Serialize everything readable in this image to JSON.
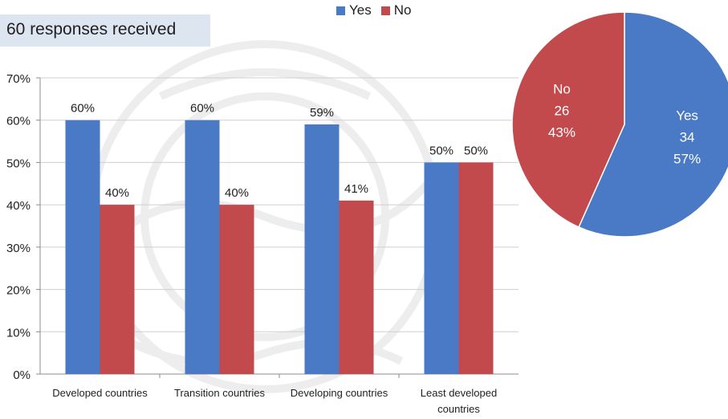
{
  "header": {
    "subtitle": "60 responses received"
  },
  "legend": [
    {
      "label": "Yes",
      "color": "#4a7ac5"
    },
    {
      "label": "No",
      "color": "#c24a4d"
    }
  ],
  "chart_data": [
    {
      "type": "bar",
      "title": "",
      "xlabel": "",
      "ylabel": "",
      "categories": [
        "Developed countries",
        "Transition countries",
        "Developing countries",
        "Least developed countries"
      ],
      "category_lines": [
        [
          "Developed countries"
        ],
        [
          "Transition countries"
        ],
        [
          "Developing countries"
        ],
        [
          "Least developed",
          "countries"
        ]
      ],
      "series": [
        {
          "name": "Yes",
          "color": "#4a7ac5",
          "values": [
            60,
            60,
            59,
            50
          ],
          "labels": [
            "60%",
            "60%",
            "59%",
            "50%"
          ]
        },
        {
          "name": "No",
          "color": "#c24a4d",
          "values": [
            40,
            40,
            41,
            50
          ],
          "labels": [
            "40%",
            "40%",
            "41%",
            "50%"
          ]
        }
      ],
      "ylim": [
        0,
        70
      ],
      "yticks": [
        0,
        10,
        20,
        30,
        40,
        50,
        60,
        70
      ],
      "ytick_labels": [
        "0%",
        "10%",
        "20%",
        "30%",
        "40%",
        "50%",
        "60%",
        "70%"
      ],
      "grid": true,
      "legend_placement": "top"
    },
    {
      "type": "pie",
      "slices": [
        {
          "name": "Yes",
          "value": 34,
          "percent": "57%",
          "color": "#4a7ac5",
          "label_lines": [
            "Yes",
            "34",
            "57%"
          ]
        },
        {
          "name": "No",
          "value": 26,
          "percent": "43%",
          "color": "#c24a4d",
          "label_lines": [
            "No",
            "26",
            "43%"
          ]
        }
      ]
    }
  ]
}
